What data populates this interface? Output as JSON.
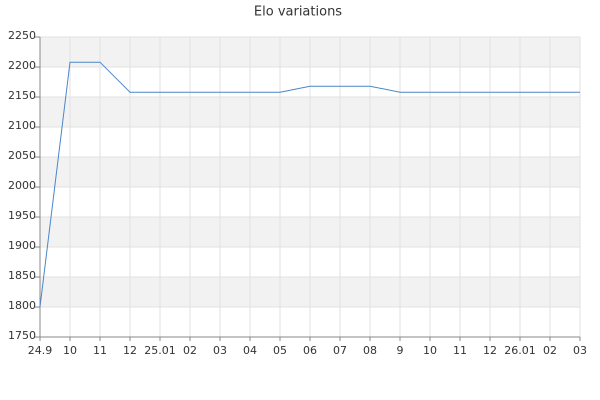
{
  "chart_data": {
    "type": "line",
    "title": "Elo variations",
    "categories": [
      "24.9",
      "10",
      "11",
      "12",
      "25.01",
      "02",
      "03",
      "04",
      "05",
      "06",
      "07",
      "08",
      "9",
      "10",
      "11",
      "12",
      "26.01",
      "02",
      "03"
    ],
    "series": [
      {
        "name": "Elo",
        "color": "#4a86c8",
        "values": [
          1800,
          2208,
          2208,
          2158,
          2158,
          2158,
          2158,
          2158,
          2158,
          2168,
          2168,
          2168,
          2158,
          2158,
          2158,
          2158,
          2158,
          2158,
          2158
        ]
      }
    ],
    "ylim": [
      1750,
      2250
    ],
    "yticks": [
      1750,
      1800,
      1850,
      1900,
      1950,
      2000,
      2050,
      2100,
      2150,
      2200,
      2250
    ],
    "grid": true
  }
}
